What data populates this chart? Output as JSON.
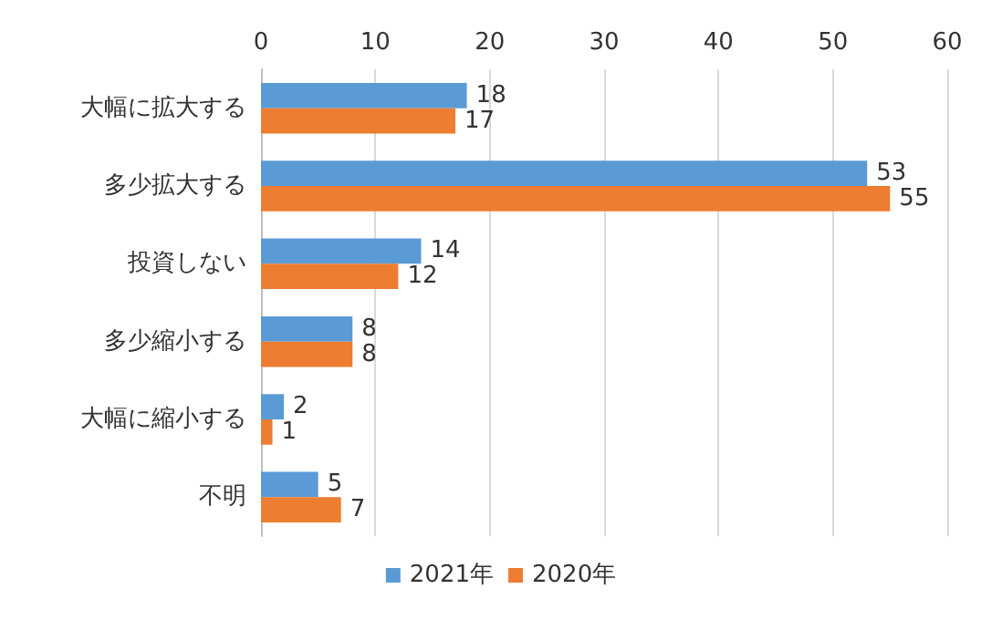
{
  "chart_data": {
    "type": "bar",
    "orientation": "horizontal",
    "categories": [
      "大幅に拡大する",
      "多少拡大する",
      "投資しない",
      "多少縮小する",
      "大幅に縮小する",
      "不明"
    ],
    "series": [
      {
        "name": "2021年",
        "color": "#5b9bd5",
        "values": [
          18,
          53,
          14,
          8,
          2,
          5
        ]
      },
      {
        "name": "2020年",
        "color": "#ed7d31",
        "values": [
          17,
          55,
          12,
          8,
          1,
          7
        ]
      }
    ],
    "xlim": [
      0,
      60
    ],
    "xticks": [
      0,
      10,
      20,
      30,
      40,
      50,
      60
    ],
    "grid": "x",
    "legend": "bottom",
    "data_labels": true
  }
}
